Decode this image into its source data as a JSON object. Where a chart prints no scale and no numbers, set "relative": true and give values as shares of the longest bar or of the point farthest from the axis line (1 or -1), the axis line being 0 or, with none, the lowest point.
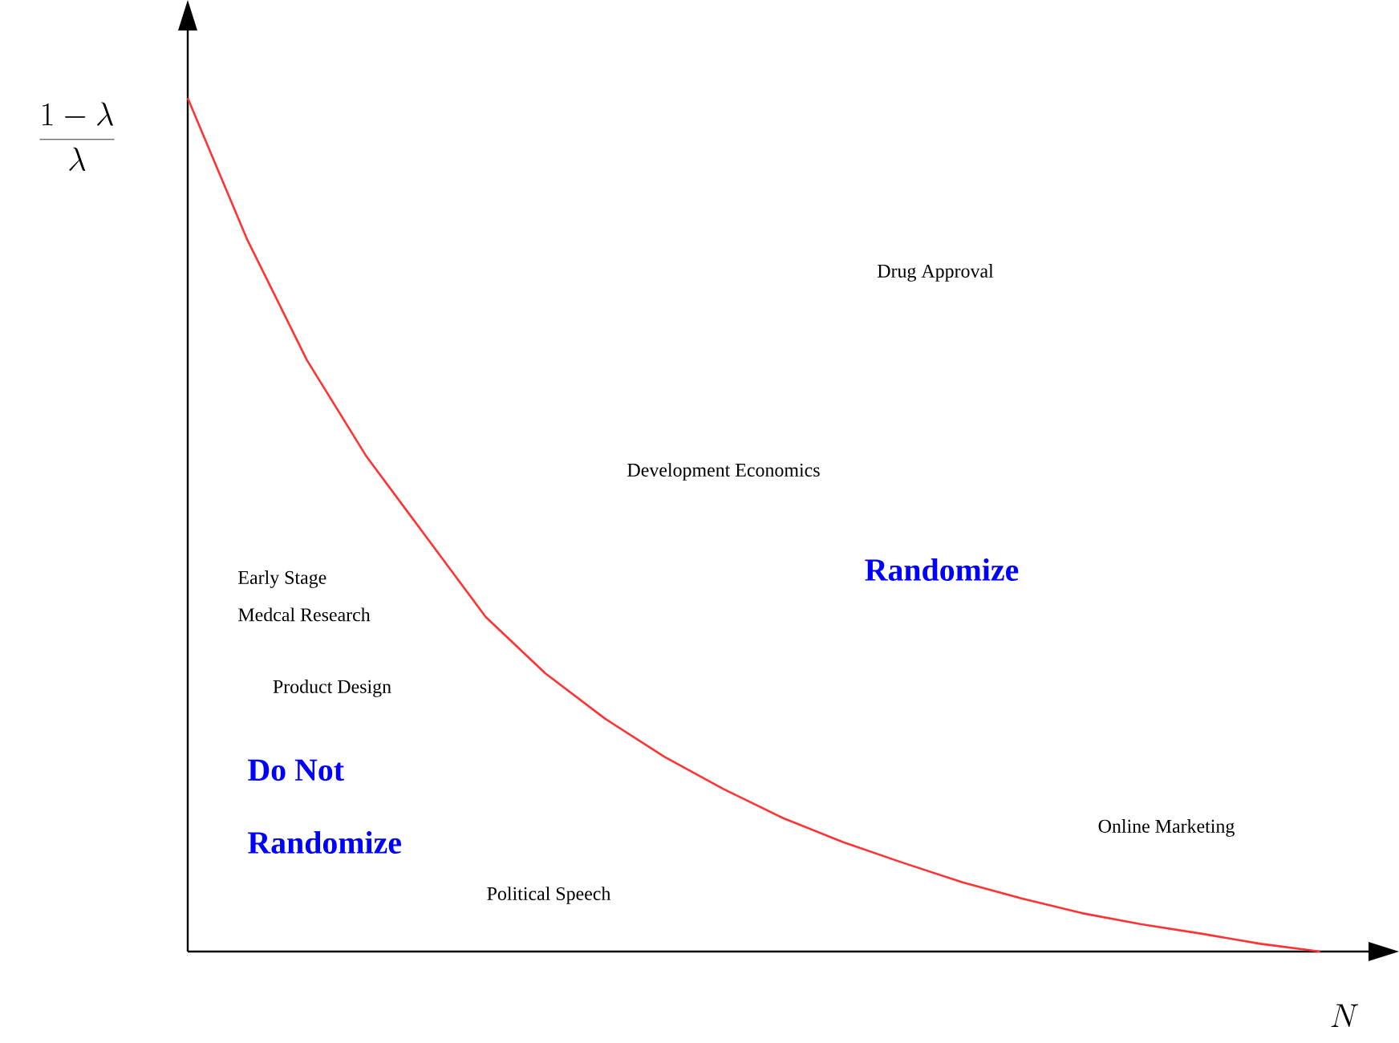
{
  "chart_data": {
    "type": "line",
    "relative": true,
    "xlabel": "N",
    "ylabel": "\\frac{1-\\lambda}{\\lambda}",
    "categories": [
      null,
      null,
      null,
      null,
      null,
      null,
      null,
      null,
      null,
      null,
      null,
      null,
      null,
      null,
      null,
      null,
      null,
      null,
      null,
      null,
      null
    ],
    "series": [
      {
        "color": "#ff3333",
        "values": [
          1.0,
          0.834,
          0.693,
          0.58,
          0.486,
          0.392,
          0.326,
          0.273,
          0.228,
          0.19,
          0.156,
          0.128,
          0.104,
          0.081,
          0.062,
          0.045,
          0.032,
          0.021,
          0.009,
          0.0,
          null
        ]
      }
    ],
    "annotations": [
      "Drug Approval",
      "Development Economics",
      "Randomize",
      "Early Stage",
      "Medcal Research",
      "Product Design",
      "Do Not",
      "Randomize",
      "Political Speech",
      "Online Marketing"
    ]
  }
}
